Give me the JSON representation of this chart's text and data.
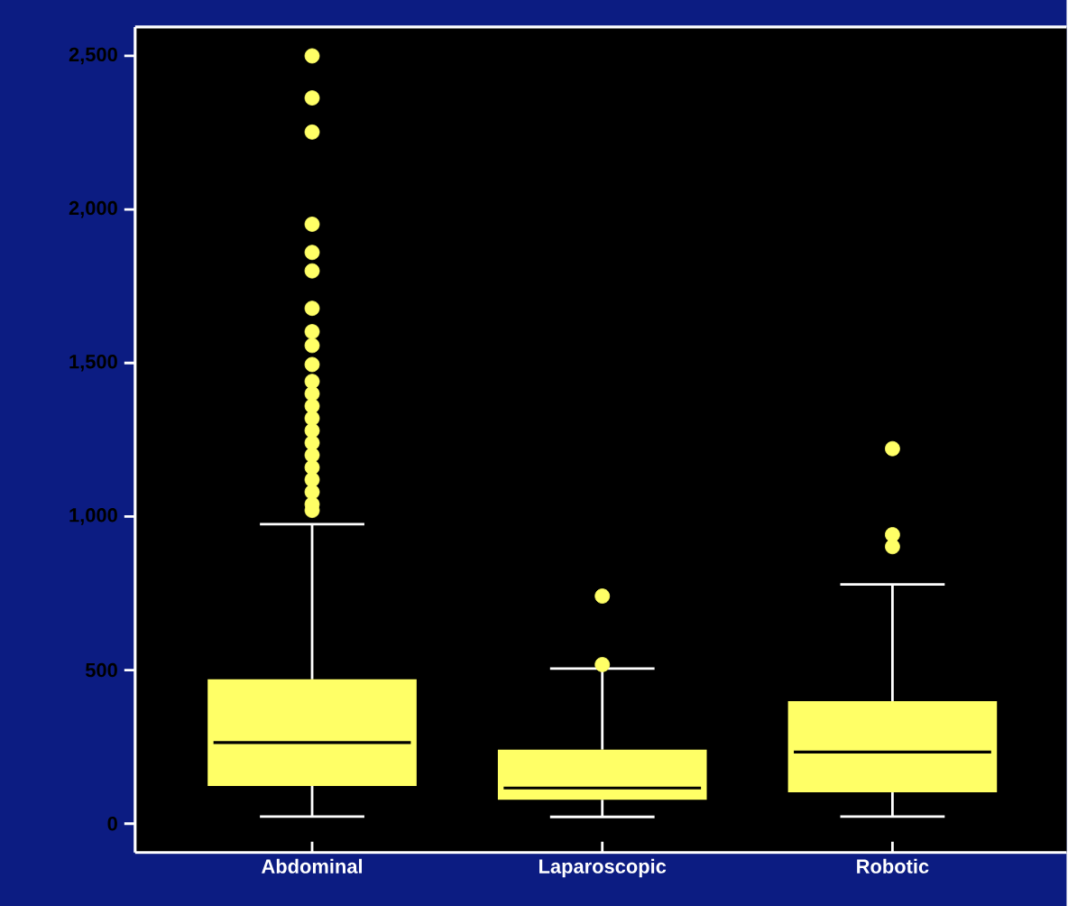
{
  "chart_data": {
    "type": "box",
    "categories": [
      "Abdominal",
      "Laparoscopic",
      "Robotic"
    ],
    "boxes": [
      {
        "low": 23,
        "q1": 123,
        "median": 264,
        "q3": 470,
        "high": 975,
        "outliers": [
          2500,
          2363,
          2252,
          1952,
          1860,
          1800,
          1678,
          1602,
          1557,
          1495,
          1440,
          1400,
          1360,
          1320,
          1280,
          1240,
          1200,
          1160,
          1120,
          1080,
          1040,
          1020
        ]
      },
      {
        "low": 22,
        "q1": 78,
        "median": 116,
        "q3": 241,
        "high": 505,
        "outliers": [
          741,
          518
        ]
      },
      {
        "low": 23,
        "q1": 102,
        "median": 233,
        "q3": 399,
        "high": 779,
        "outliers": [
          1221,
          941,
          902
        ]
      }
    ],
    "color": "#ffff66",
    "ylim": [
      -94,
      2594
    ],
    "yticks": [
      {
        "value": 0,
        "label": "0"
      },
      {
        "value": 500,
        "label": "500"
      },
      {
        "value": 1000,
        "label": "1,000"
      },
      {
        "value": 1500,
        "label": "1,500"
      },
      {
        "value": 2000,
        "label": "2,000"
      },
      {
        "value": 2500,
        "label": "2,500"
      }
    ],
    "grid": false,
    "marker": "circle"
  }
}
